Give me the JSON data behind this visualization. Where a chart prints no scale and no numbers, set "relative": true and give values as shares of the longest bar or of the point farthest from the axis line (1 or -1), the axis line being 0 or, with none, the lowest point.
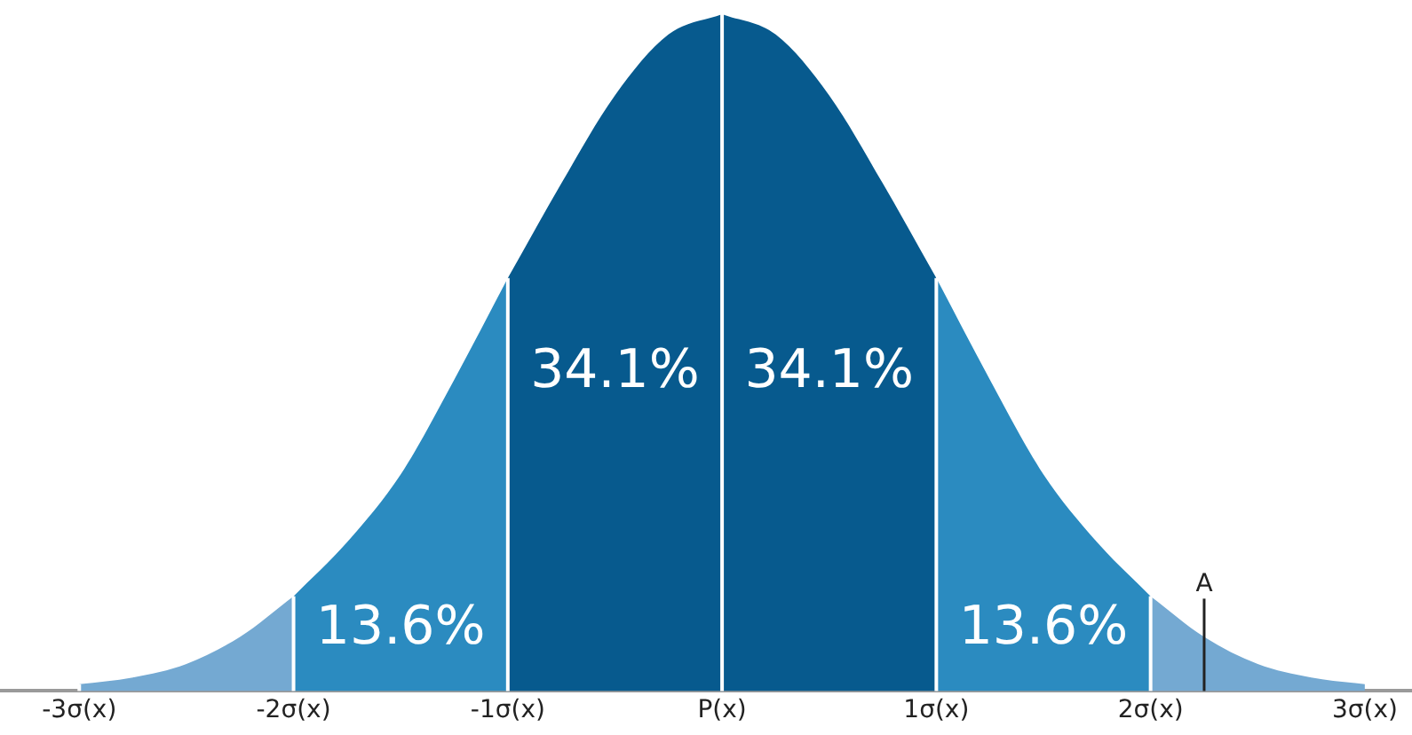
{
  "chart_data": {
    "type": "area",
    "relative": true,
    "grid": "x",
    "legend": false,
    "tick_labels": "x",
    "xlim": [
      -3.37,
      3.22
    ],
    "xticks": [
      {
        "value": -3,
        "label": "-3σ(x)"
      },
      {
        "value": -2,
        "label": "-2σ(x)"
      },
      {
        "value": -1,
        "label": "-1σ(x)"
      },
      {
        "value": 0,
        "label": "P(x)"
      },
      {
        "value": 1,
        "label": "1σ(x)"
      },
      {
        "value": 2,
        "label": "2σ(x)"
      },
      {
        "value": 3,
        "label": "3σ(x)"
      }
    ],
    "series": [
      {
        "color": "#74a9d2",
        "x": [
          -3,
          -2.75,
          -2.5,
          -2.25,
          -2
        ],
        "values": [
          0.01,
          0.02,
          0.04,
          0.08,
          0.14
        ]
      },
      {
        "color": "#2b8bc0",
        "x": [
          -2,
          -1.75,
          -1.5,
          -1.25,
          -1
        ],
        "values": [
          0.14,
          0.22,
          0.32,
          0.46,
          0.61
        ]
      },
      {
        "color": "#075a8e",
        "x": [
          -1,
          -0.75,
          -0.5,
          -0.25,
          0
        ],
        "values": [
          0.61,
          0.75,
          0.88,
          0.97,
          1
        ]
      },
      {
        "color": "#075a8e",
        "x": [
          0,
          0.25,
          0.5,
          0.75,
          1
        ],
        "values": [
          1,
          0.97,
          0.88,
          0.75,
          0.61
        ]
      },
      {
        "color": "#2b8bc0",
        "x": [
          1,
          1.25,
          1.5,
          1.75,
          2
        ],
        "values": [
          0.61,
          0.46,
          0.32,
          0.22,
          0.14
        ]
      },
      {
        "color": "#74a9d2",
        "x": [
          2,
          2.25,
          2.5,
          2.75,
          3
        ],
        "values": [
          0.14,
          0.08,
          0.04,
          0.02,
          0.01
        ]
      }
    ],
    "ref_lines": [
      {
        "axis": "x",
        "value": 2.25,
        "label": "A"
      }
    ],
    "annotations": [
      "34.1%",
      "34.1%",
      "13.6%",
      "13.6%"
    ]
  }
}
